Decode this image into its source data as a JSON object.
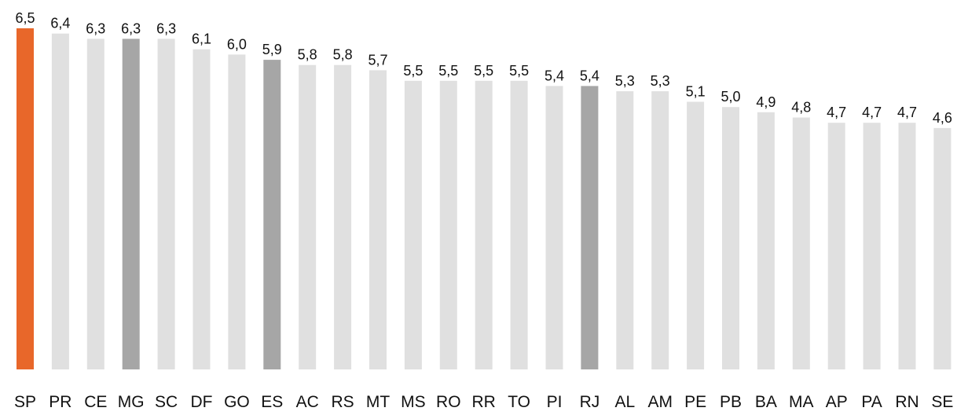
{
  "chart_data": {
    "type": "bar",
    "title": "",
    "xlabel": "",
    "ylabel": "",
    "ylim": [
      0,
      6.5
    ],
    "grid": false,
    "categories": [
      "SP",
      "PR",
      "CE",
      "MG",
      "SC",
      "DF",
      "GO",
      "ES",
      "AC",
      "RS",
      "MT",
      "MS",
      "RO",
      "RR",
      "TO",
      "PI",
      "RJ",
      "AL",
      "AM",
      "PE",
      "PB",
      "BA",
      "MA",
      "AP",
      "PA",
      "RN",
      "SE"
    ],
    "values": [
      6.5,
      6.4,
      6.3,
      6.3,
      6.3,
      6.1,
      6.0,
      5.9,
      5.8,
      5.8,
      5.7,
      5.5,
      5.5,
      5.5,
      5.5,
      5.4,
      5.4,
      5.3,
      5.3,
      5.1,
      5.0,
      4.9,
      4.8,
      4.7,
      4.7,
      4.7,
      4.6
    ],
    "value_labels": [
      "6,5",
      "6,4",
      "6,3",
      "6,3",
      "6,3",
      "6,1",
      "6,0",
      "5,9",
      "5,8",
      "5,8",
      "5,7",
      "5,5",
      "5,5",
      "5,5",
      "5,5",
      "5,4",
      "5,4",
      "5,3",
      "5,3",
      "5,1",
      "5,0",
      "4,9",
      "4,8",
      "4,7",
      "4,7",
      "4,7",
      "4,6"
    ],
    "colors": {
      "default": "#e0e0e0",
      "highlight": "#e8672a",
      "secondary": "#a6a6a6"
    },
    "bar_colors": [
      "highlight",
      "default",
      "default",
      "secondary",
      "default",
      "default",
      "default",
      "secondary",
      "default",
      "default",
      "default",
      "default",
      "default",
      "default",
      "default",
      "default",
      "secondary",
      "default",
      "default",
      "default",
      "default",
      "default",
      "default",
      "default",
      "default",
      "default",
      "default"
    ]
  }
}
